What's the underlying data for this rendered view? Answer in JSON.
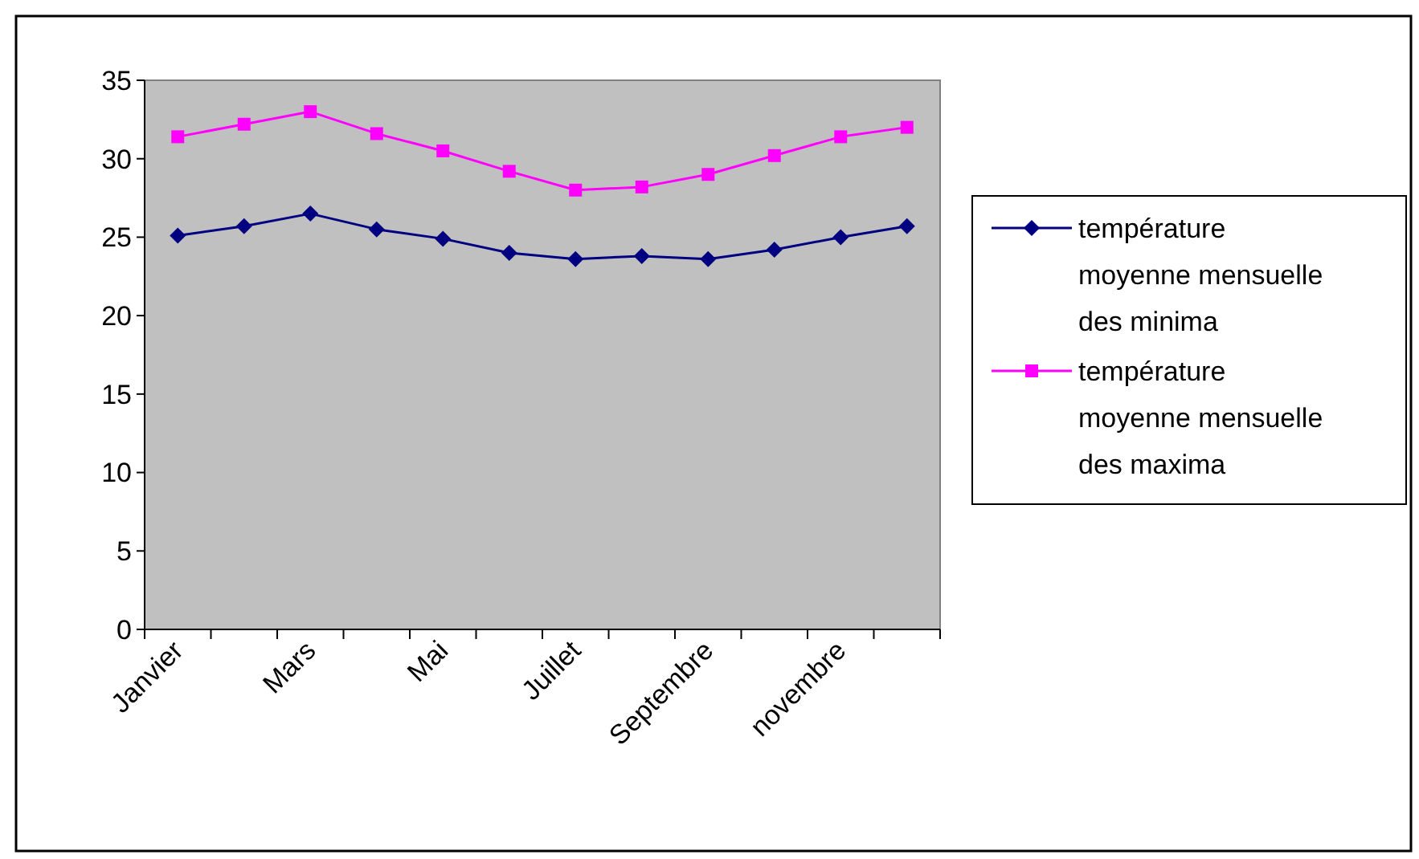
{
  "chart_data": {
    "type": "line",
    "categories": [
      "Janvier",
      null,
      "Mars",
      null,
      "Mai",
      null,
      "Juillet",
      null,
      "Septembre",
      null,
      "novembre",
      null
    ],
    "series": [
      {
        "name": "température moyenne mensuelle des minima",
        "color": "#000080",
        "marker": "diamond",
        "values": [
          25.1,
          25.7,
          26.5,
          25.5,
          24.9,
          24.0,
          23.6,
          23.8,
          23.6,
          24.2,
          25.0,
          25.7
        ]
      },
      {
        "name": "température moyenne mensuelle des maxima",
        "color": "#ff00ff",
        "marker": "square",
        "values": [
          31.4,
          32.2,
          33.0,
          31.6,
          30.5,
          29.2,
          28.0,
          28.2,
          29.0,
          30.2,
          31.4,
          32.0
        ]
      }
    ],
    "ylim": [
      0,
      35
    ],
    "yticks": [
      0,
      5,
      10,
      15,
      20,
      25,
      30,
      35
    ],
    "grid": false,
    "legend": "right"
  }
}
